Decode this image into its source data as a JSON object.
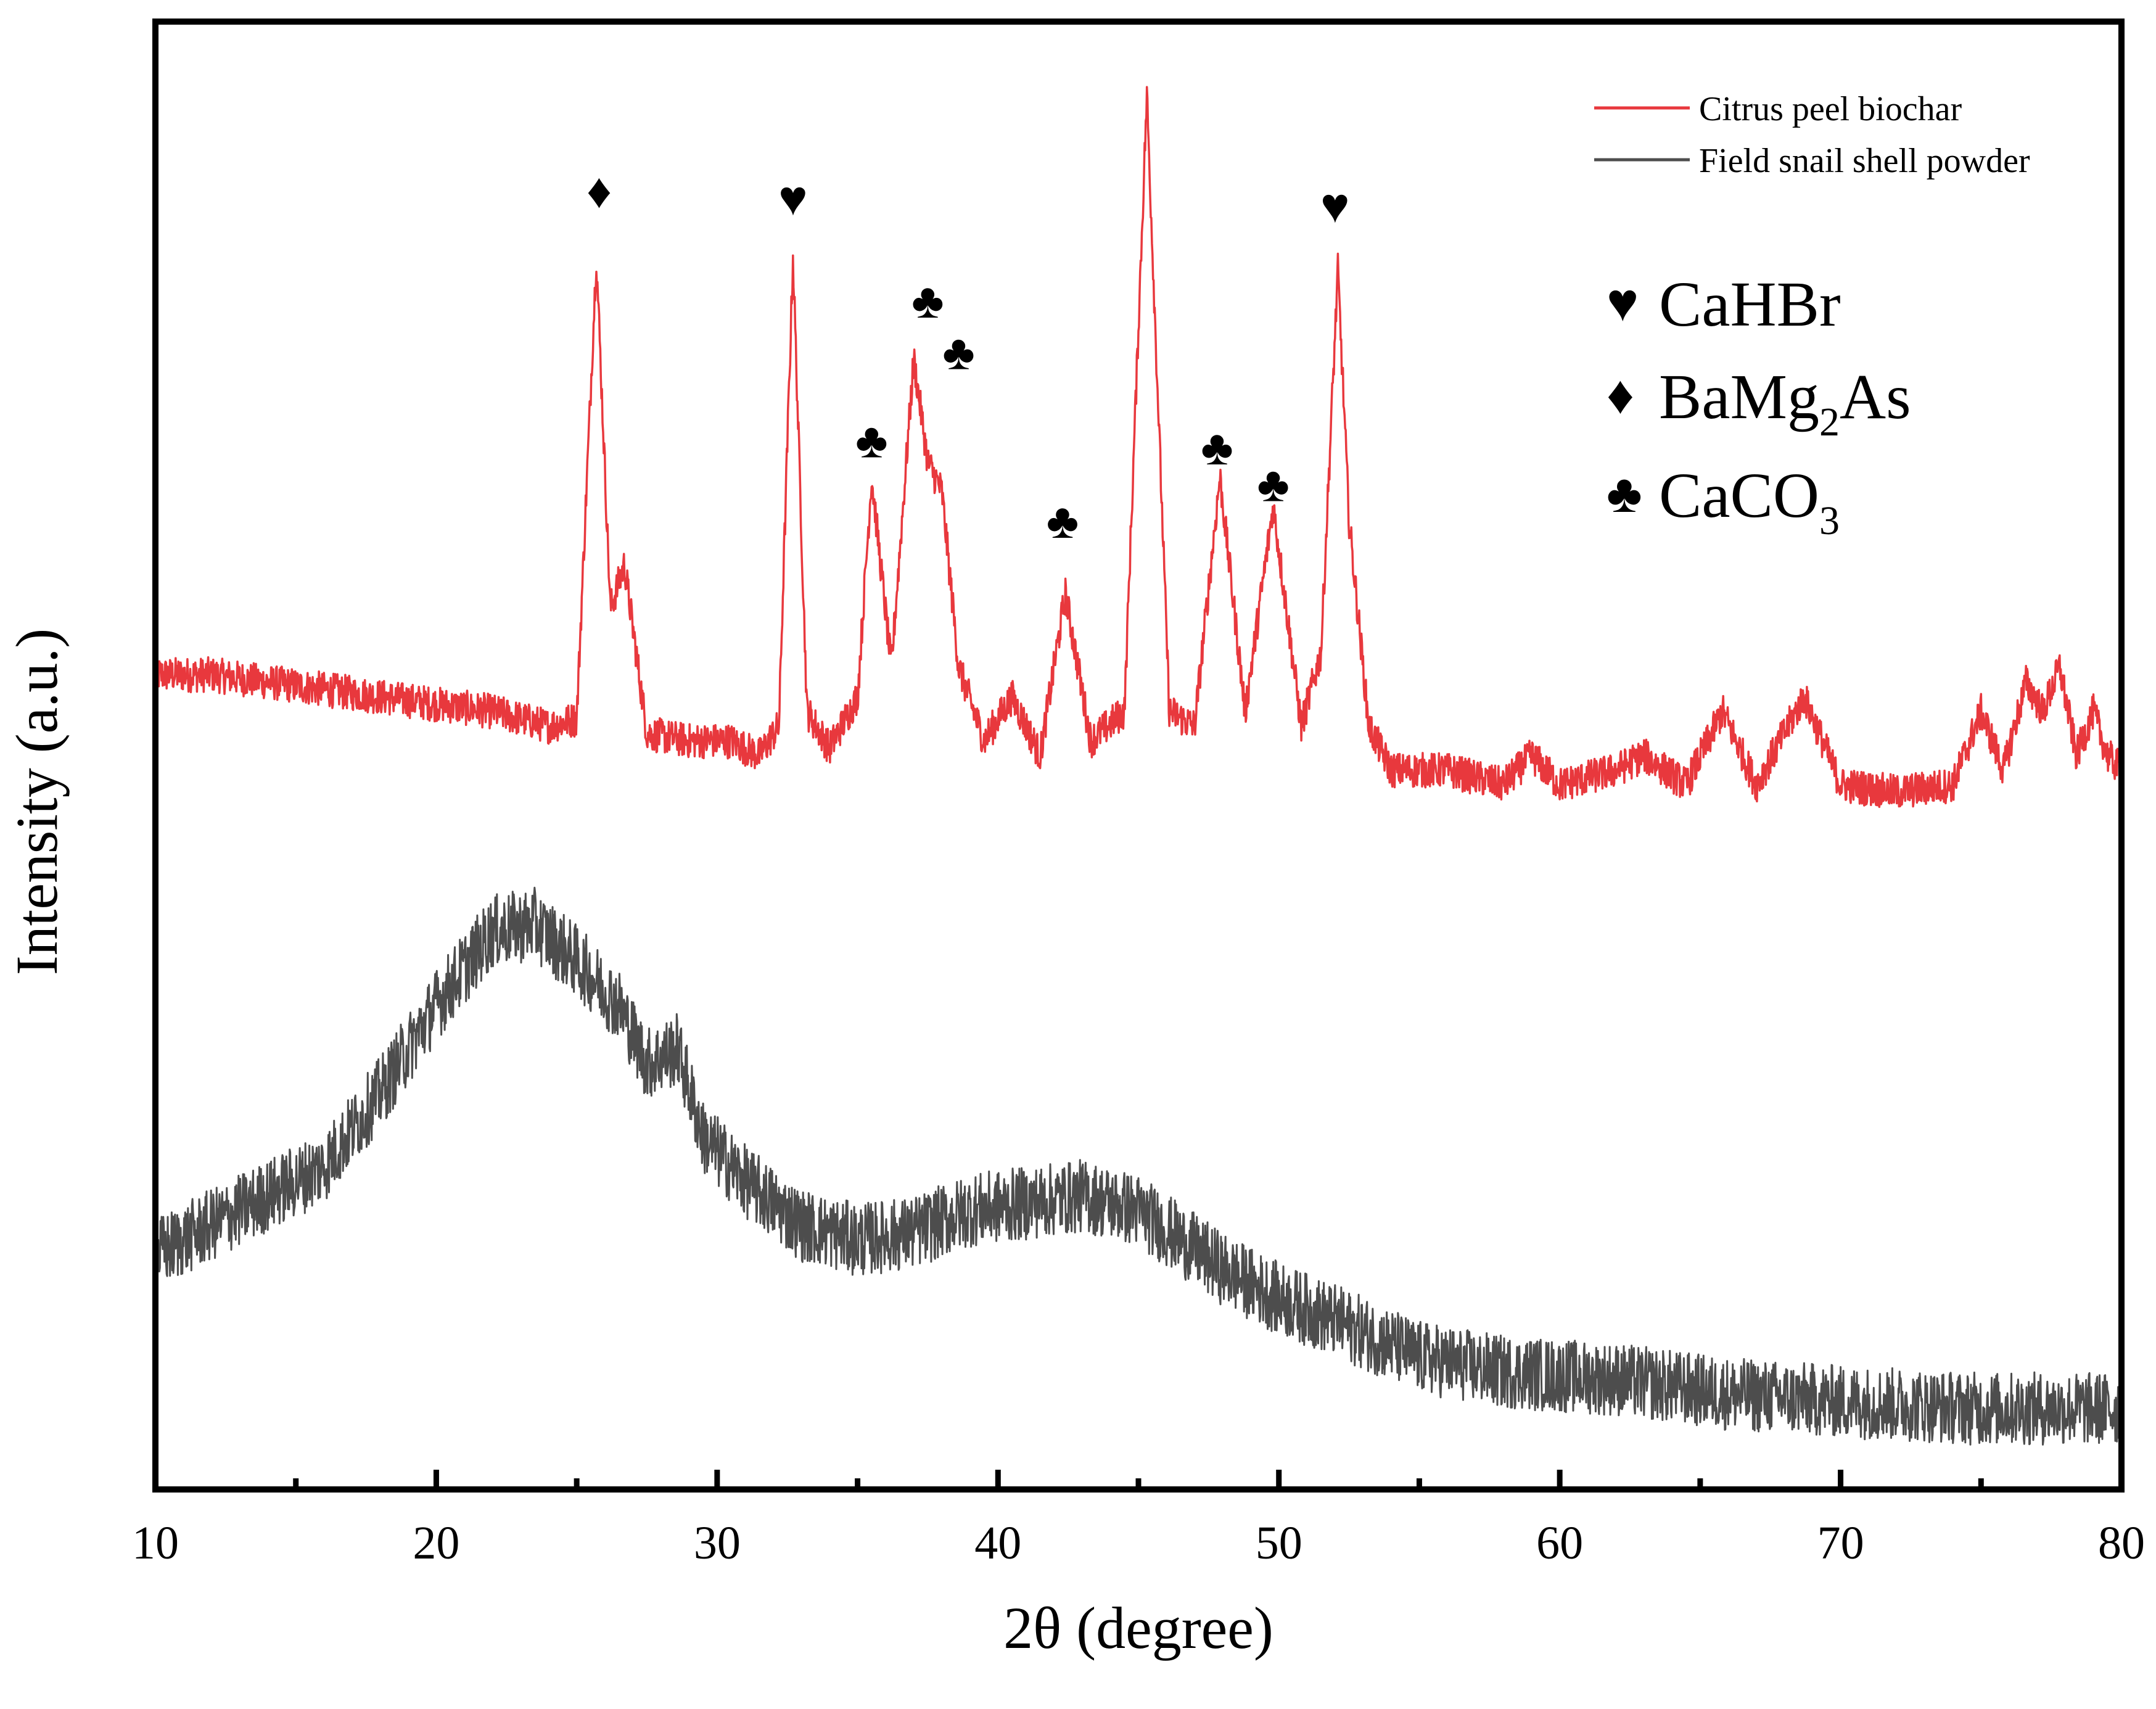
{
  "chart_data": {
    "type": "line",
    "title": "",
    "xlabel": "2θ (degree)",
    "ylabel": "Intensity (a.u.)",
    "xlim": [
      10,
      80
    ],
    "ylim": [
      0,
      1
    ],
    "x_ticks": [
      10,
      20,
      30,
      40,
      50,
      60,
      70,
      80
    ],
    "x_tick_labels": [
      "10",
      "20",
      "30",
      "40",
      "50",
      "60",
      "70",
      "80"
    ],
    "x_minor_ticks": [
      15,
      25,
      35,
      45,
      55,
      65,
      75
    ],
    "y_ticks_shown": false,
    "grid": false,
    "legend": {
      "position": "top-right",
      "entries": [
        {
          "label": "Citrus peel biochar",
          "color": "#e8383d"
        },
        {
          "label": "Field snail shell powder",
          "color": "#4d4d4d"
        }
      ]
    },
    "series": [
      {
        "name": "Citrus peel biochar",
        "color": "#e8383d",
        "x": [
          10,
          12,
          14,
          16,
          18,
          20,
          22,
          24,
          25,
          25.7,
          26.2,
          26.7,
          27.5,
          29,
          30.5,
          31.5,
          32.2,
          32.7,
          33.2,
          34,
          35,
          35.5,
          36.2,
          37,
          37.5,
          38,
          38.6,
          39.5,
          40.5,
          41.5,
          42.4,
          43.3,
          44.5,
          45.3,
          46.1,
          47,
          47.9,
          48.8,
          49.8,
          50.8,
          51.5,
          52.1,
          52.5,
          53.2,
          54,
          56,
          58,
          59,
          60,
          62,
          63,
          64.5,
          65.8,
          67,
          68.7,
          70,
          72,
          74,
          75,
          75.8,
          76.6,
          77.2,
          77.8,
          78.4,
          79,
          79.5,
          80
        ],
        "values": [
          0.555,
          0.555,
          0.55,
          0.545,
          0.54,
          0.535,
          0.53,
          0.52,
          0.525,
          0.84,
          0.6,
          0.63,
          0.515,
          0.51,
          0.51,
          0.5,
          0.52,
          0.84,
          0.53,
          0.505,
          0.54,
          0.69,
          0.56,
          0.77,
          0.7,
          0.68,
          0.56,
          0.51,
          0.54,
          0.5,
          0.61,
          0.51,
          0.53,
          0.95,
          0.53,
          0.52,
          0.69,
          0.53,
          0.67,
          0.52,
          0.57,
          0.83,
          0.66,
          0.52,
          0.49,
          0.49,
          0.48,
          0.5,
          0.48,
          0.49,
          0.5,
          0.48,
          0.53,
          0.48,
          0.54,
          0.48,
          0.475,
          0.48,
          0.53,
          0.49,
          0.55,
          0.53,
          0.56,
          0.5,
          0.53,
          0.5,
          0.49
        ]
      },
      {
        "name": "Field snail shell powder",
        "color": "#4d4d4d",
        "x": [
          10,
          12,
          14,
          16,
          18,
          20,
          22,
          23.5,
          25,
          26.5,
          27.5,
          28.6,
          29.5,
          31,
          33,
          35,
          37,
          39,
          41,
          43,
          45,
          46.5,
          48,
          50,
          52,
          55,
          58,
          62,
          66,
          70,
          75,
          80
        ],
        "values": [
          0.16,
          0.18,
          0.2,
          0.22,
          0.27,
          0.33,
          0.38,
          0.385,
          0.36,
          0.33,
          0.29,
          0.3,
          0.24,
          0.21,
          0.18,
          0.17,
          0.175,
          0.19,
          0.195,
          0.2,
          0.19,
          0.17,
          0.15,
          0.13,
          0.115,
          0.09,
          0.08,
          0.075,
          0.065,
          0.06,
          0.055,
          0.055
        ]
      }
    ],
    "peak_labels": [
      {
        "symbol": "♦",
        "x": 25.8,
        "y": 0.885
      },
      {
        "symbol": "♥",
        "x": 32.7,
        "y": 0.88
      },
      {
        "symbol": "♣",
        "x": 35.5,
        "y": 0.715
      },
      {
        "symbol": "♣",
        "x": 37.5,
        "y": 0.81
      },
      {
        "symbol": "♣",
        "x": 38.6,
        "y": 0.775
      },
      {
        "symbol": "♣",
        "x": 42.3,
        "y": 0.66
      },
      {
        "symbol": "♣",
        "x": 47.8,
        "y": 0.71
      },
      {
        "symbol": "♣",
        "x": 49.8,
        "y": 0.685
      },
      {
        "symbol": "♥",
        "x": 52.0,
        "y": 0.875
      }
    ],
    "phase_key": [
      {
        "symbol": "♥",
        "formula": "CaHBr",
        "subscript": "",
        "suffix": ""
      },
      {
        "symbol": "♦",
        "formula": "BaMg",
        "subscript": "2",
        "suffix": "As"
      },
      {
        "symbol": "♣",
        "formula": "CaCO",
        "subscript": "3",
        "suffix": ""
      }
    ]
  }
}
